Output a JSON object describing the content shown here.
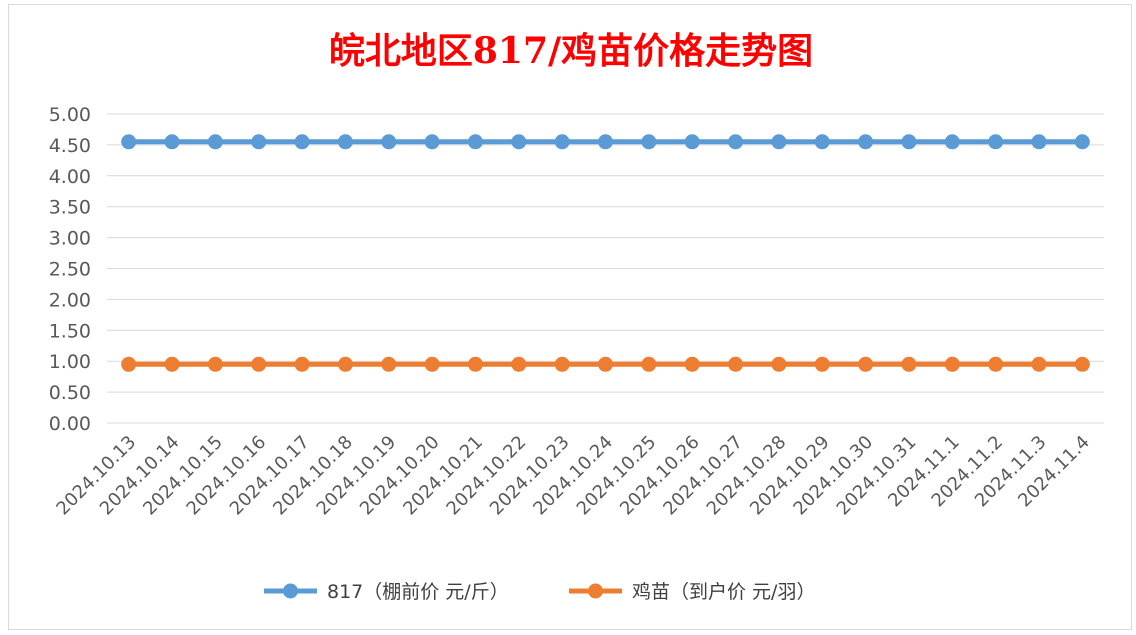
{
  "chart_data": {
    "type": "line",
    "title": "皖北地区817/鸡苗价格走势图",
    "title_color": "#ff0000",
    "xlabel": "",
    "ylabel": "",
    "ylim": [
      0,
      5
    ],
    "y_ticks": [
      "0.00",
      "0.50",
      "1.00",
      "1.50",
      "2.00",
      "2.50",
      "3.00",
      "3.50",
      "4.00",
      "4.50",
      "5.00"
    ],
    "grid": true,
    "legend_position": "bottom",
    "categories": [
      "2024.10.13",
      "2024.10.14",
      "2024.10.15",
      "2024.10.16",
      "2024.10.17",
      "2024.10.18",
      "2024.10.19",
      "2024.10.20",
      "2024.10.21",
      "2024.10.22",
      "2024.10.23",
      "2024.10.24",
      "2024.10.25",
      "2024.10.26",
      "2024.10.27",
      "2024.10.28",
      "2024.10.29",
      "2024.10.30",
      "2024.10.31",
      "2024.11.1",
      "2024.11.2",
      "2024.11.3",
      "2024.11.4"
    ],
    "series": [
      {
        "name": "817（棚前价 元/斤）",
        "color": "#5b9bd5",
        "values": [
          4.55,
          4.55,
          4.55,
          4.55,
          4.55,
          4.55,
          4.55,
          4.55,
          4.55,
          4.55,
          4.55,
          4.55,
          4.55,
          4.55,
          4.55,
          4.55,
          4.55,
          4.55,
          4.55,
          4.55,
          4.55,
          4.55,
          4.55
        ]
      },
      {
        "name": "鸡苗（到户价 元/羽）",
        "color": "#ed7d31",
        "values": [
          0.95,
          0.95,
          0.95,
          0.95,
          0.95,
          0.95,
          0.95,
          0.95,
          0.95,
          0.95,
          0.95,
          0.95,
          0.95,
          0.95,
          0.95,
          0.95,
          0.95,
          0.95,
          0.95,
          0.95,
          0.95,
          0.95,
          0.95
        ]
      }
    ]
  }
}
